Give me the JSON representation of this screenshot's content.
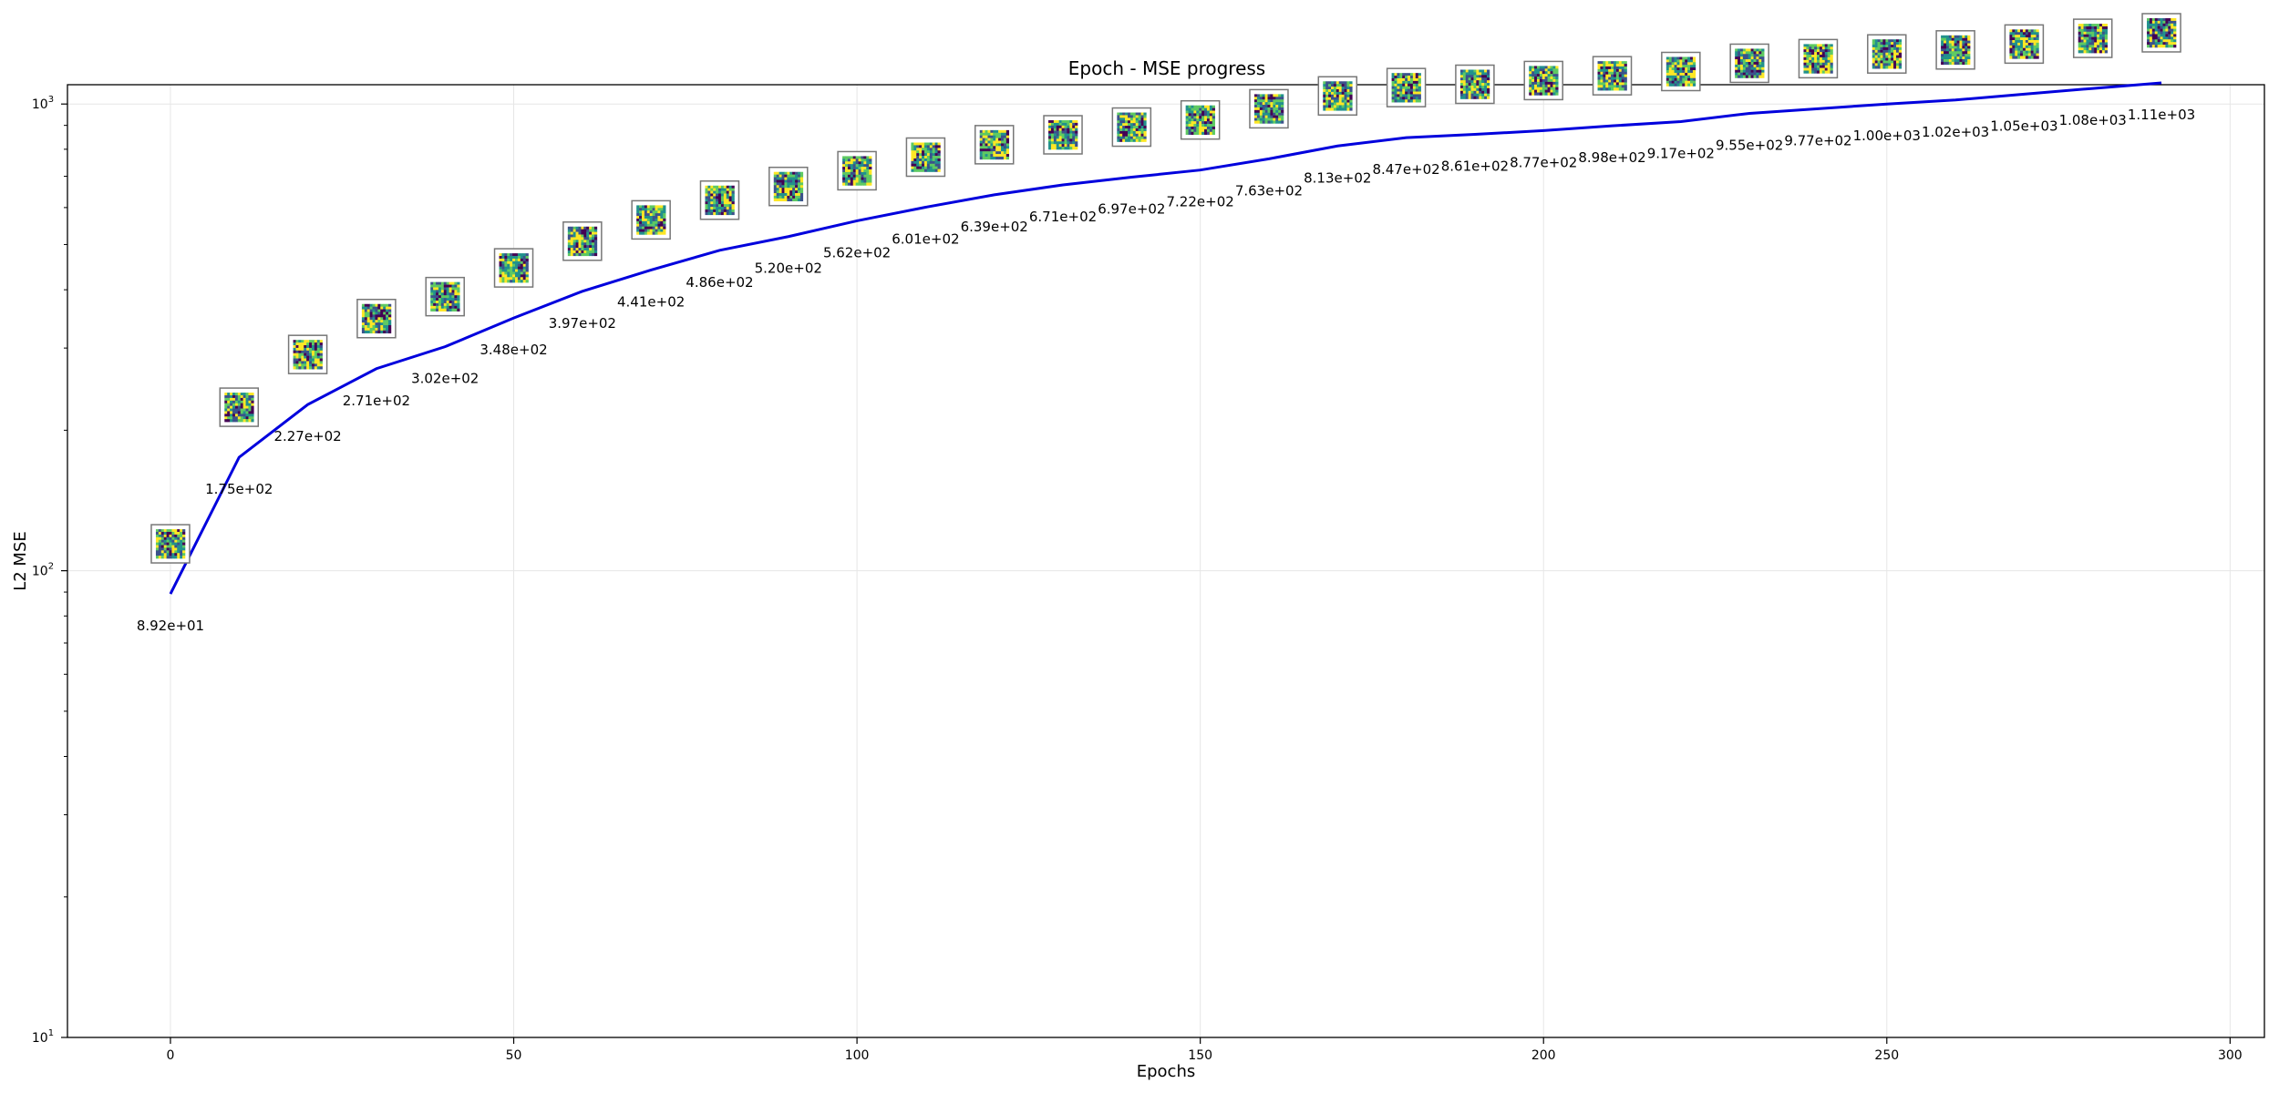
{
  "chart_data": {
    "type": "line",
    "title": "Epoch - MSE progress",
    "xlabel": "Epochs",
    "ylabel": "L2 MSE",
    "xlim": [
      -15,
      305
    ],
    "ylim": [
      10,
      1100
    ],
    "yscale": "log",
    "grid": true,
    "line_color": "#0000dd",
    "x_ticks": [
      0,
      50,
      100,
      150,
      200,
      250,
      300
    ],
    "x_tick_labels": [
      "0",
      "50",
      "100",
      "150",
      "200",
      "250",
      "300"
    ],
    "y_ticks": [
      10,
      100,
      1000
    ],
    "y_tick_bases": [
      "10",
      "10",
      "10"
    ],
    "y_tick_exponents": [
      "1",
      "2",
      "3"
    ],
    "series": [
      {
        "x": [
          0,
          10,
          20,
          30,
          40,
          50,
          60,
          70,
          80,
          90,
          100,
          110,
          120,
          130,
          140,
          150,
          160,
          170,
          180,
          190,
          200,
          210,
          220,
          230,
          240,
          250,
          260,
          270,
          280,
          290
        ],
        "values": [
          89.2,
          175,
          227,
          271,
          302,
          348,
          397,
          441,
          486,
          520,
          562,
          601,
          639,
          671,
          697,
          722,
          763,
          813,
          847,
          861,
          877,
          898,
          917,
          955,
          977,
          1000,
          1020,
          1050,
          1080,
          1110
        ],
        "labels": [
          "8.92e+01",
          "1.75e+02",
          "2.27e+02",
          "2.71e+02",
          "3.02e+02",
          "3.48e+02",
          "3.97e+02",
          "4.41e+02",
          "4.86e+02",
          "5.20e+02",
          "5.62e+02",
          "6.01e+02",
          "6.39e+02",
          "6.71e+02",
          "6.97e+02",
          "7.22e+02",
          "7.63e+02",
          "8.13e+02",
          "8.47e+02",
          "8.61e+02",
          "8.77e+02",
          "8.98e+02",
          "9.17e+02",
          "9.55e+02",
          "9.77e+02",
          "1.00e+03",
          "1.02e+03",
          "1.05e+03",
          "1.08e+03",
          "1.11e+03"
        ]
      }
    ],
    "thumbnail_color_scale": [
      "#440154",
      "#3b528b",
      "#21918c",
      "#5ec962",
      "#fde725"
    ]
  }
}
